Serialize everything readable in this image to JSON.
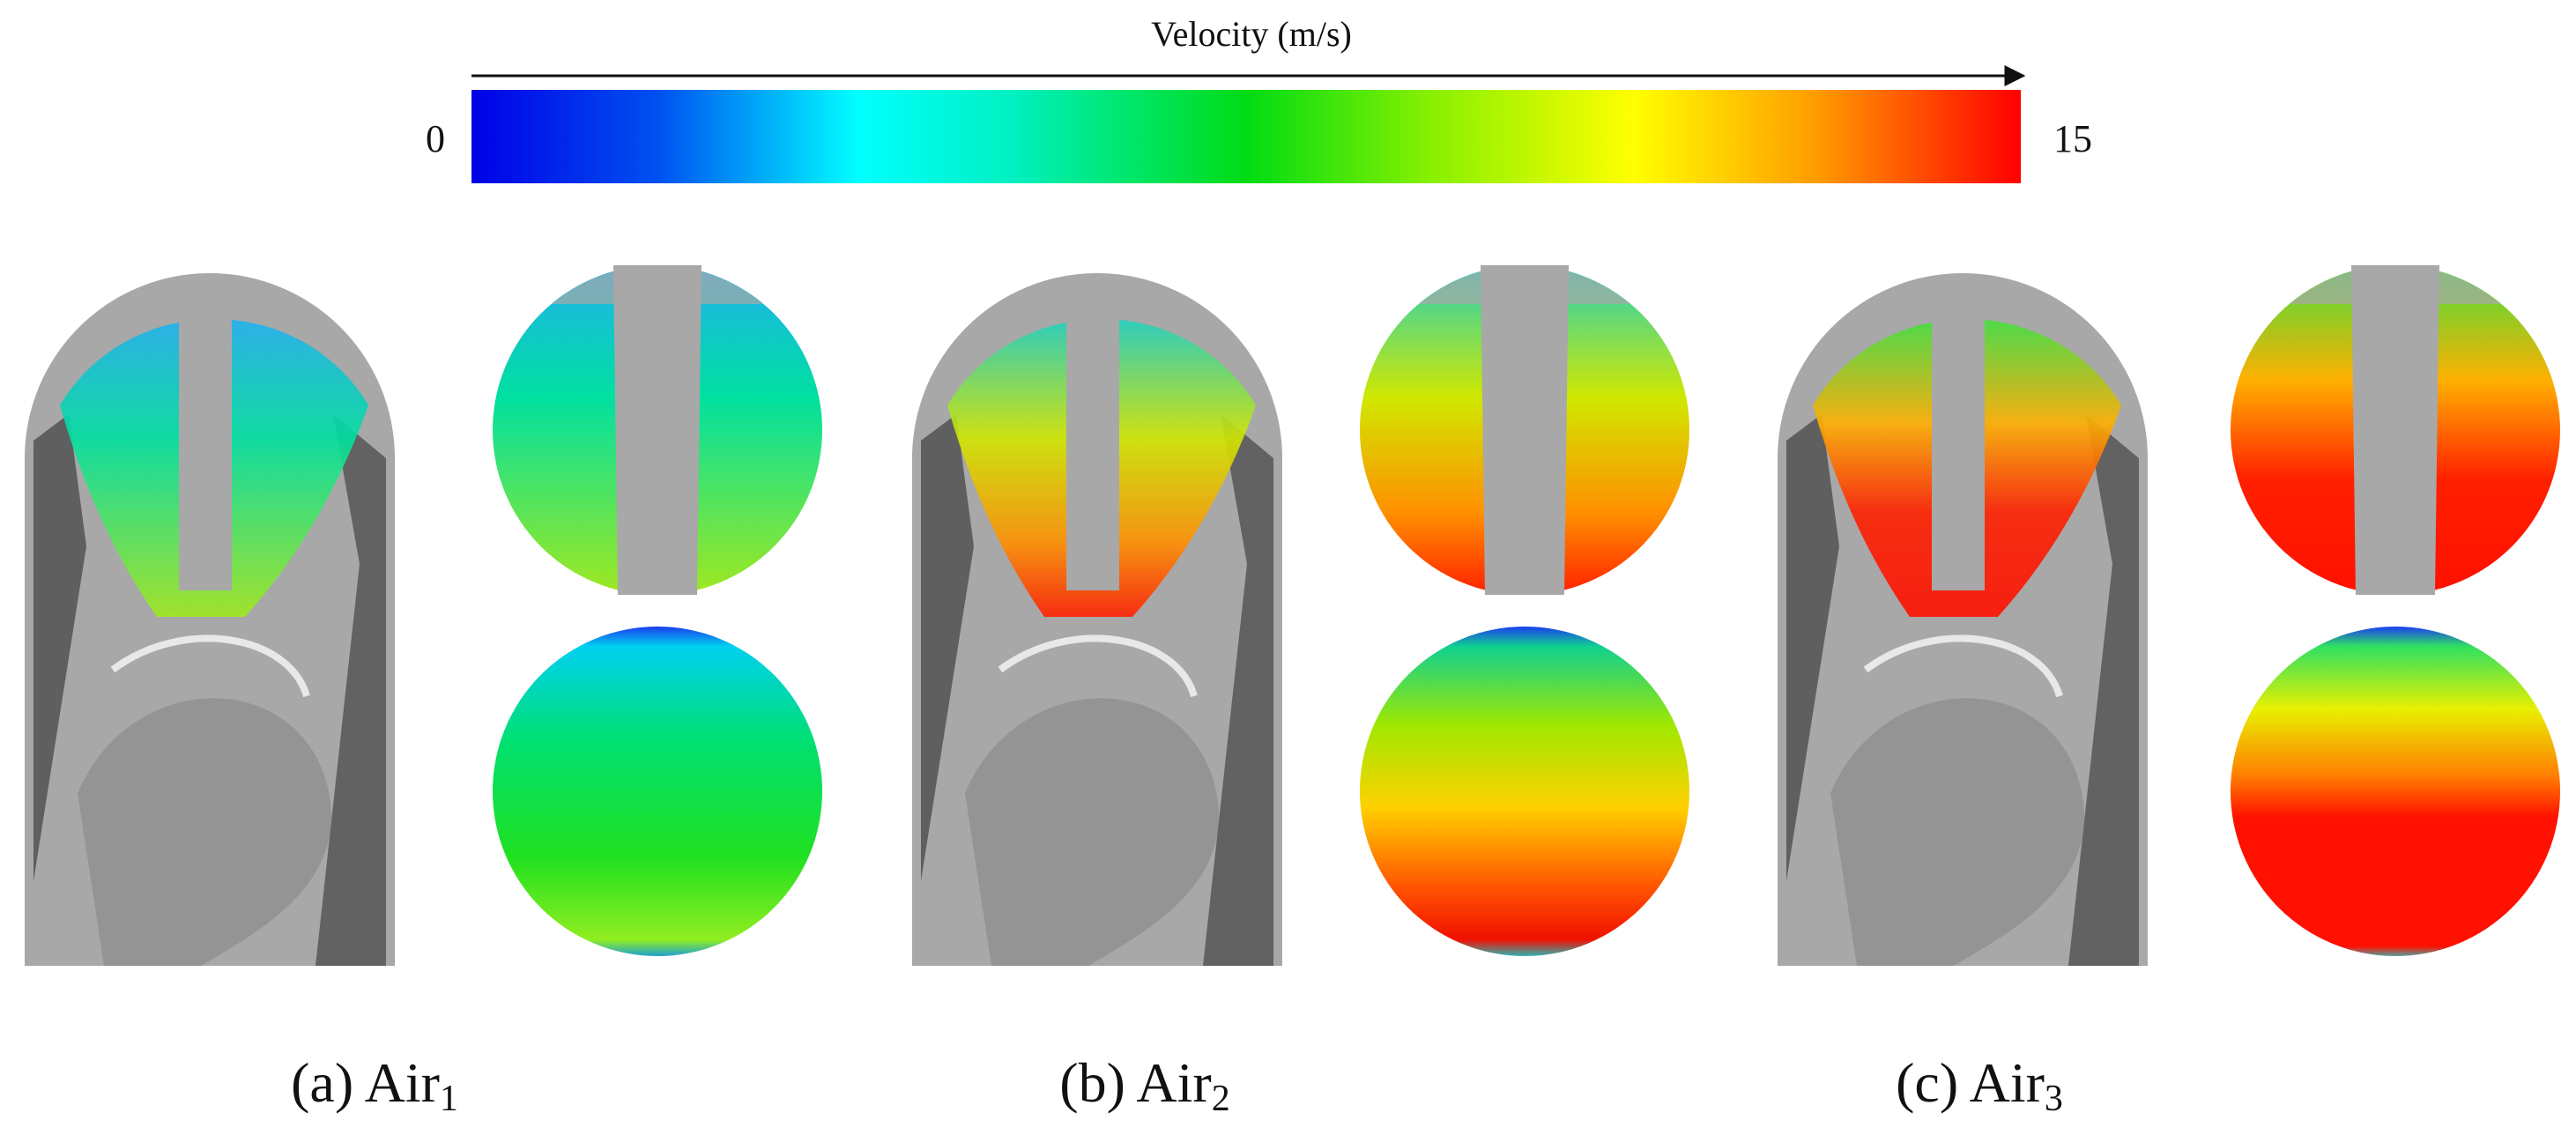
{
  "colorbar": {
    "title": "Velocity (m/s)",
    "min": 0,
    "max": 15
  },
  "panels": [
    {
      "label": "(a) Air",
      "subscript": "1"
    },
    {
      "label": "(b) Air",
      "subscript": "2"
    },
    {
      "label": "(c) Air",
      "subscript": "3"
    }
  ]
}
